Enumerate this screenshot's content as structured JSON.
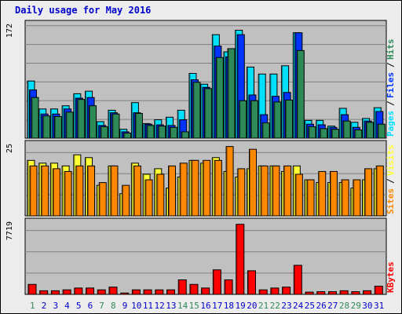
{
  "chart_title": "Daily usage for May 2016",
  "colors": {
    "background": "#ececec",
    "plot_background": "#c0c0c0",
    "hits": "#00e0ff",
    "files": "#0033ff",
    "pages": "#2e8b57",
    "visits": "#ffff33",
    "sites": "#ff8800",
    "kbytes": "#ff0000",
    "weekend_day": "#2e8b57",
    "weekday": "#0000cc"
  },
  "chart_data": [
    {
      "type": "bar",
      "panel": "hits",
      "y_max_label": "172",
      "ylim": [
        0,
        172
      ],
      "grid": true,
      "legend": [
        {
          "label": "Pages",
          "color": "#00e0ff"
        },
        {
          "label": "Files",
          "color": "#0033ff"
        },
        {
          "label": "Hits",
          "color": "#2e8b57"
        }
      ],
      "categories": [
        "1",
        "2",
        "3",
        "4",
        "5",
        "6",
        "7",
        "8",
        "9",
        "10",
        "11",
        "12",
        "13",
        "14",
        "15",
        "16",
        "17",
        "18",
        "19",
        "20",
        "21",
        "22",
        "23",
        "24",
        "25",
        "26",
        "27",
        "28",
        "29",
        "30",
        "31"
      ],
      "series": [
        {
          "name": "Hits",
          "values": [
            90,
            46,
            46,
            51,
            70,
            74,
            26,
            44,
            14,
            56,
            23,
            29,
            33,
            44,
            102,
            85,
            163,
            136,
            170,
            112,
            101,
            101,
            114,
            166,
            28,
            28,
            19,
            47,
            25,
            31,
            48
          ]
        },
        {
          "name": "Files",
          "values": [
            76,
            38,
            38,
            46,
            63,
            64,
            20,
            40,
            10,
            40,
            22,
            21,
            20,
            29,
            92,
            80,
            145,
            128,
            163,
            68,
            37,
            66,
            72,
            166,
            22,
            21,
            17,
            37,
            17,
            27,
            42
          ]
        },
        {
          "name": "Pages",
          "values": [
            64,
            35,
            34,
            41,
            61,
            51,
            18,
            38,
            8,
            39,
            20,
            19,
            17,
            10,
            88,
            78,
            127,
            141,
            59,
            59,
            24,
            57,
            60,
            138,
            18,
            15,
            14,
            27,
            13,
            25,
            22
          ]
        }
      ]
    },
    {
      "type": "bar",
      "panel": "visits",
      "y_max_label": "25",
      "ylim": [
        0,
        25
      ],
      "grid": true,
      "legend": [
        {
          "label": "Sites",
          "color": "#ff8800"
        },
        {
          "label": "Visits",
          "color": "#ffff33"
        }
      ],
      "categories": [
        "1",
        "2",
        "3",
        "4",
        "5",
        "6",
        "7",
        "8",
        "9",
        "10",
        "11",
        "12",
        "13",
        "14",
        "15",
        "16",
        "17",
        "18",
        "19",
        "20",
        "21",
        "22",
        "23",
        "24",
        "25",
        "26",
        "27",
        "28",
        "29",
        "30",
        "31"
      ],
      "series": [
        {
          "name": "Visits",
          "values": [
            20,
            19,
            19,
            18,
            22,
            21,
            11,
            18,
            8,
            19,
            15,
            17,
            10,
            14,
            20,
            19,
            21,
            16,
            14,
            17,
            18,
            18,
            16,
            18,
            13,
            12,
            12,
            12,
            10,
            13,
            17
          ]
        },
        {
          "name": "Sites",
          "values": [
            18,
            18,
            17,
            16,
            18,
            18,
            12,
            18,
            11,
            18,
            13,
            15,
            18,
            19,
            20,
            20,
            20,
            25,
            17,
            24,
            18,
            18,
            18,
            15,
            13,
            16,
            16,
            13,
            13,
            17,
            18
          ]
        }
      ]
    },
    {
      "type": "bar",
      "panel": "kbytes",
      "y_max_label": "7719",
      "ylim": [
        0,
        7719
      ],
      "grid": true,
      "legend": [
        {
          "label": "KBytes",
          "color": "#ff0000"
        }
      ],
      "categories": [
        "1",
        "2",
        "3",
        "4",
        "5",
        "6",
        "7",
        "8",
        "9",
        "10",
        "11",
        "12",
        "13",
        "14",
        "15",
        "16",
        "17",
        "18",
        "19",
        "20",
        "21",
        "22",
        "23",
        "24",
        "25",
        "26",
        "27",
        "28",
        "29",
        "30",
        "31"
      ],
      "weekend_days": [
        "1",
        "7",
        "8",
        "14",
        "15",
        "21",
        "22",
        "28",
        "29"
      ],
      "series": [
        {
          "name": "KBytes",
          "values": [
            1100,
            400,
            400,
            500,
            700,
            700,
            500,
            800,
            150,
            500,
            500,
            500,
            500,
            1600,
            1100,
            700,
            2700,
            1600,
            7719,
            2600,
            500,
            700,
            800,
            3200,
            250,
            300,
            300,
            400,
            300,
            400,
            900
          ]
        }
      ]
    }
  ]
}
